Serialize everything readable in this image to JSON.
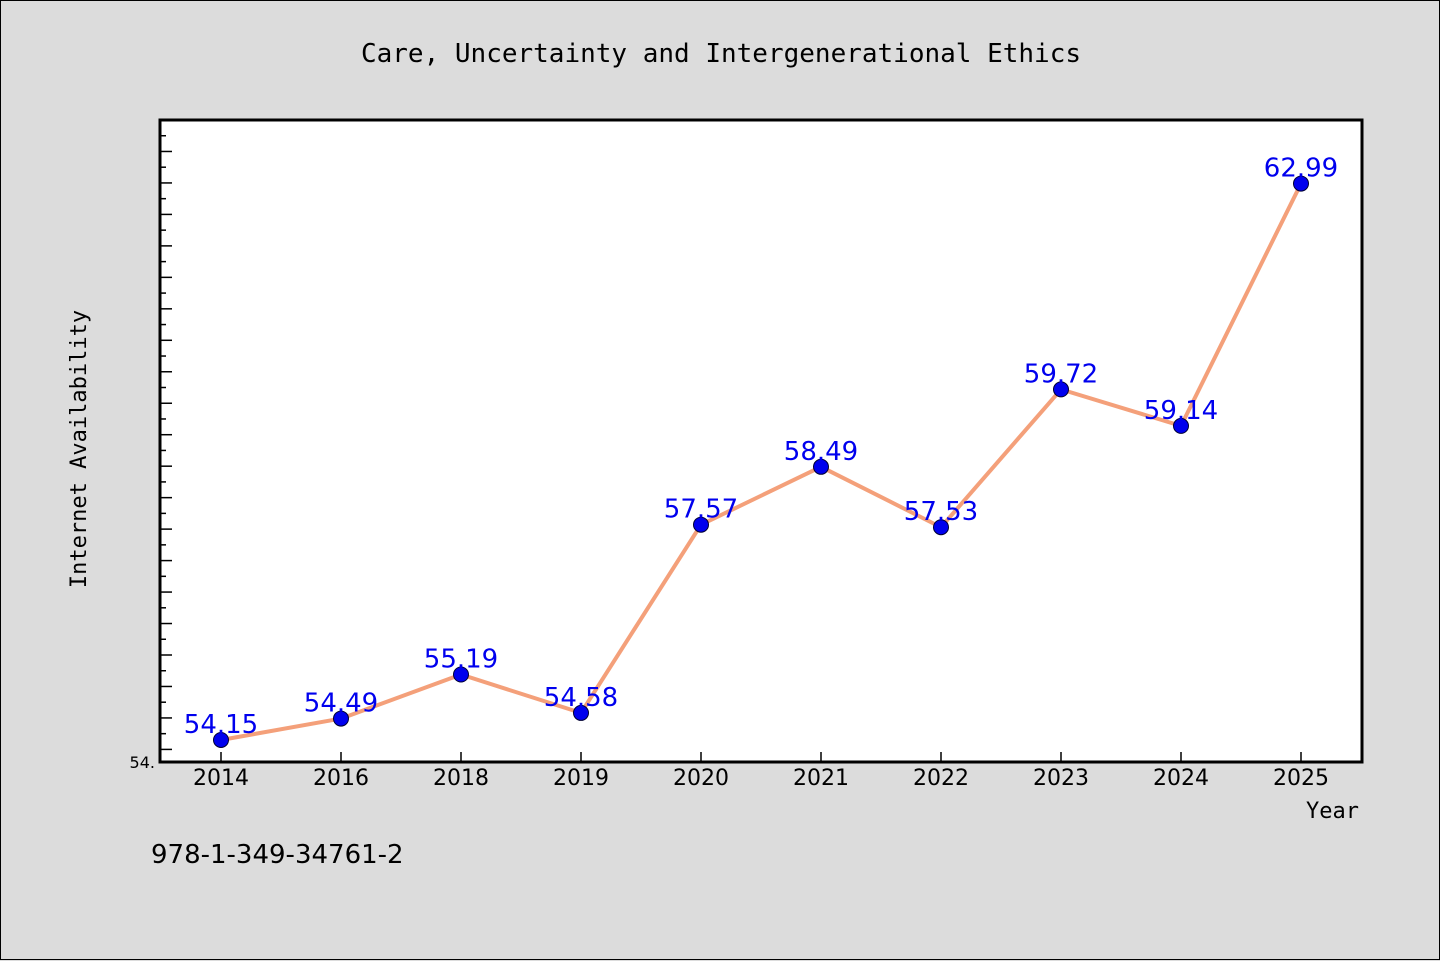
{
  "chart_data": {
    "type": "line",
    "title": "Care, Uncertainty and Intergenerational Ethics",
    "xlabel": "Year",
    "ylabel": "Internet Availability",
    "categories": [
      "2014",
      "2016",
      "2018",
      "2019",
      "2020",
      "2021",
      "2022",
      "2023",
      "2024",
      "2025"
    ],
    "series": [
      {
        "values": [
          54.15,
          54.49,
          55.19,
          54.58,
          57.57,
          58.49,
          57.53,
          59.72,
          59.14,
          62.99
        ],
        "data_labels": [
          "54.15",
          "54.49",
          "55.19",
          "54.58",
          "57.57",
          "58.49",
          "57.53",
          "59.72",
          "59.14",
          "62.99"
        ]
      }
    ],
    "y_tick_labels": [
      "54."
    ],
    "ylim": [
      53.8,
      64.0
    ],
    "grid": false,
    "legend": "none",
    "line_color": "#f4a07a",
    "marker_color": "#0000ee",
    "label_color": "#0000ee"
  },
  "footer": {
    "isbn": "978-1-349-34761-2"
  }
}
